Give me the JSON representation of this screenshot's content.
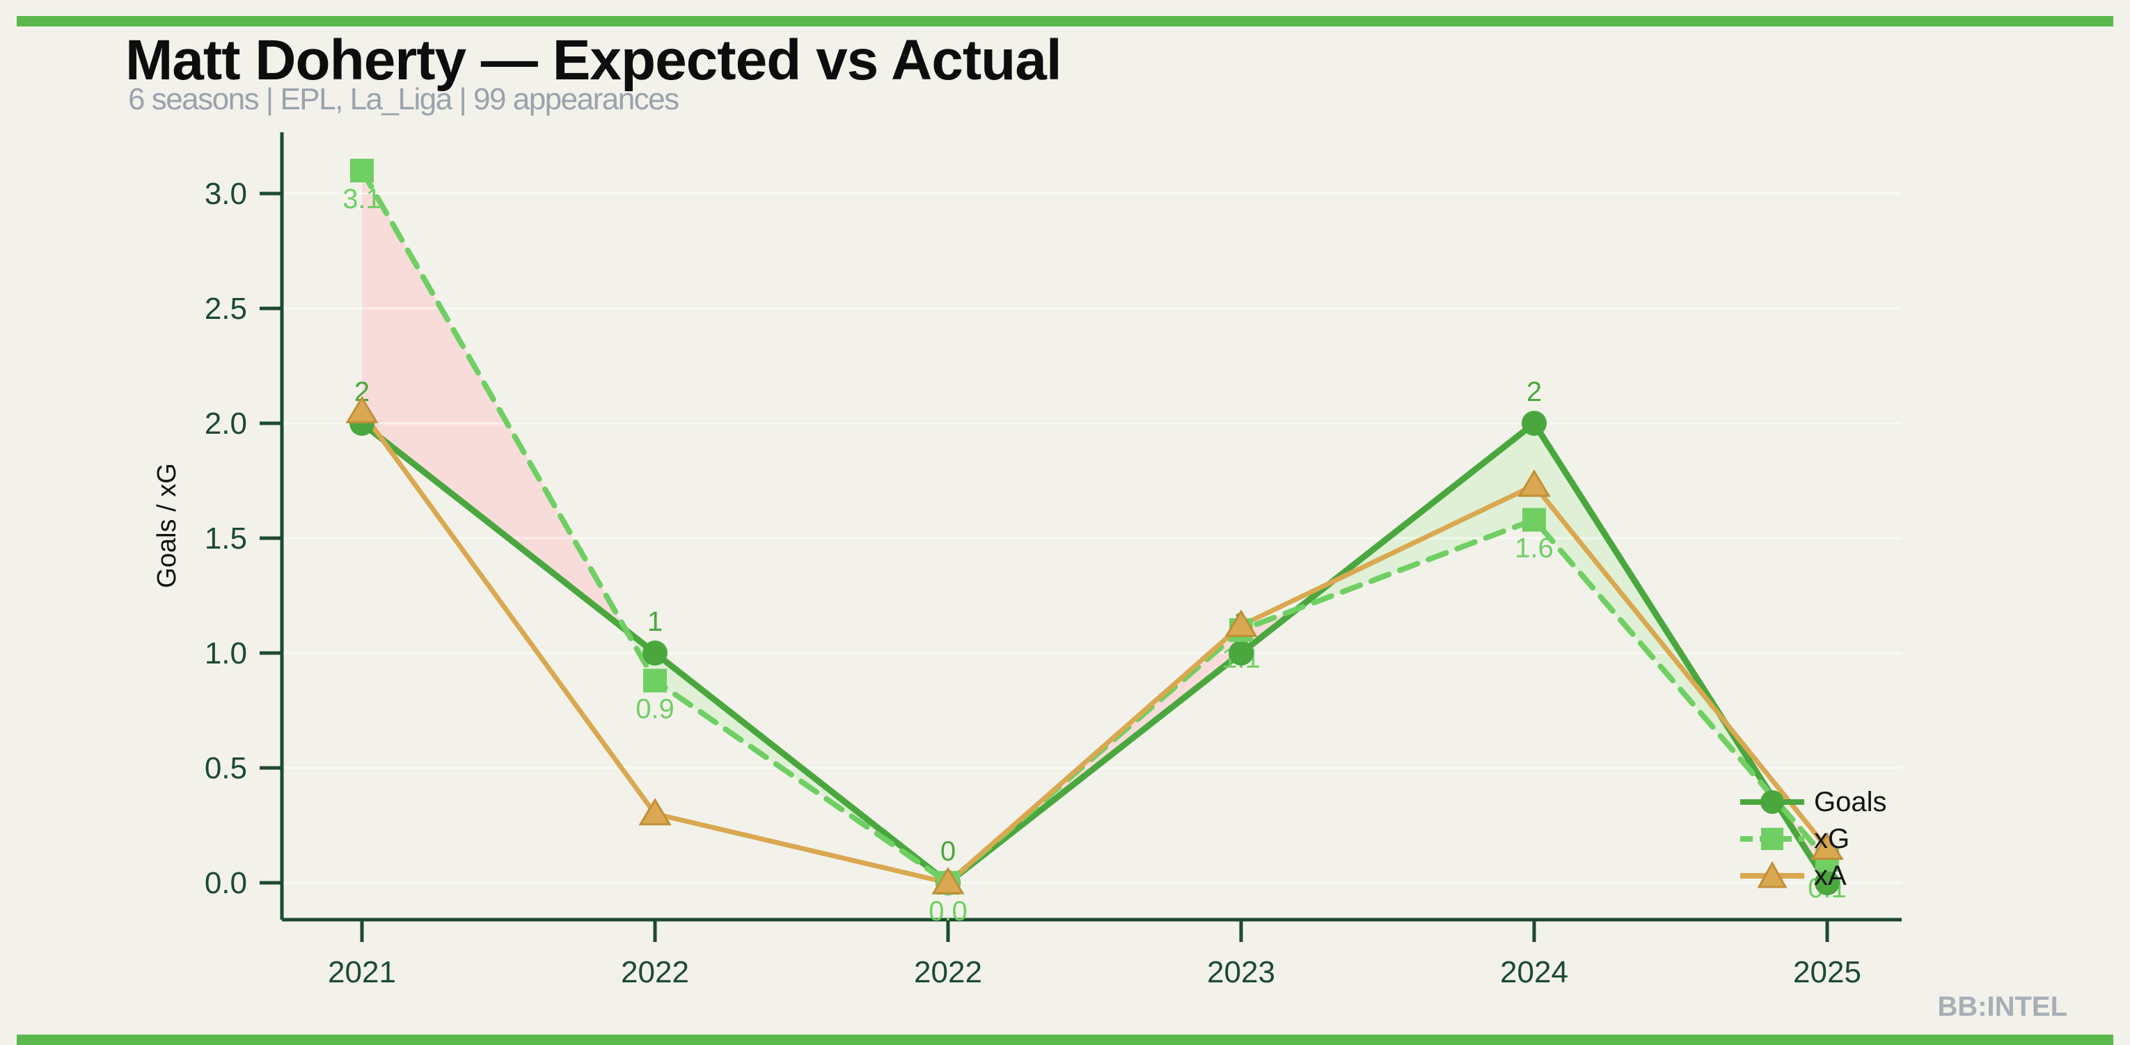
{
  "page": {
    "background_color": "#f2f2eb",
    "accent_bar_color": "#5bb84d"
  },
  "header": {
    "title": "Matt Doherty — Expected vs Actual",
    "subtitle": "6 seasons | EPL, La_Liga | 99 appearances"
  },
  "watermark": "BB:INTEL",
  "chart_data": {
    "type": "line",
    "title": "Matt Doherty — Expected vs Actual",
    "subtitle": "6 seasons | EPL, La_Liga | 99 appearances",
    "y_axis_label": "Goals / xG",
    "x_tick_labels": [
      "2021",
      "2022",
      "2022",
      "2023",
      "2024",
      "2025"
    ],
    "y_ticks": [
      0.0,
      0.5,
      1.0,
      1.5,
      2.0,
      2.5,
      3.0
    ],
    "y_tick_labels": [
      "0.0",
      "0.5",
      "1.0",
      "1.5",
      "2.0",
      "2.5",
      "3.0"
    ],
    "ylim": [
      -0.16,
      3.26
    ],
    "grid": "faint horizontal gridlines at each 0.5 step",
    "axis_color": "#1d4a30",
    "tick_label_color": "#1d4a30",
    "legend": {
      "position": "inside-right",
      "entries": [
        "Goals",
        "xG",
        "xA"
      ]
    },
    "series": [
      {
        "name": "Goals",
        "color": "#4aa73e",
        "line_style": "solid",
        "marker": "circle",
        "values": [
          2,
          1,
          0,
          1,
          2,
          0
        ],
        "point_labels": [
          "2",
          "1",
          "0",
          "1",
          "2",
          "0"
        ],
        "label_position": "above"
      },
      {
        "name": "xG",
        "color": "#70cf63",
        "line_style": "dashed",
        "marker": "square",
        "values": [
          3.1,
          0.88,
          0,
          1.1,
          1.58,
          0.1
        ],
        "point_labels": [
          "3.1",
          "0.9",
          "0.0",
          "1.1",
          "1.6",
          "0.1"
        ],
        "label_position": "below"
      },
      {
        "name": "xA",
        "color": "#d9a850",
        "marker_stroke": "#c08f38",
        "line_style": "solid",
        "marker": "triangle",
        "values": [
          2.05,
          0.3,
          0,
          1.12,
          1.73,
          0.15
        ],
        "point_labels": null,
        "label_position": null
      }
    ],
    "fill_between": {
      "series_a": "Goals",
      "series_b": "xG",
      "color_a_above": "#dff0d6",
      "color_b_above": "#f8dcda",
      "description": "band between Goals and xG: green where Goals > xG, pink where xG > Goals"
    }
  }
}
